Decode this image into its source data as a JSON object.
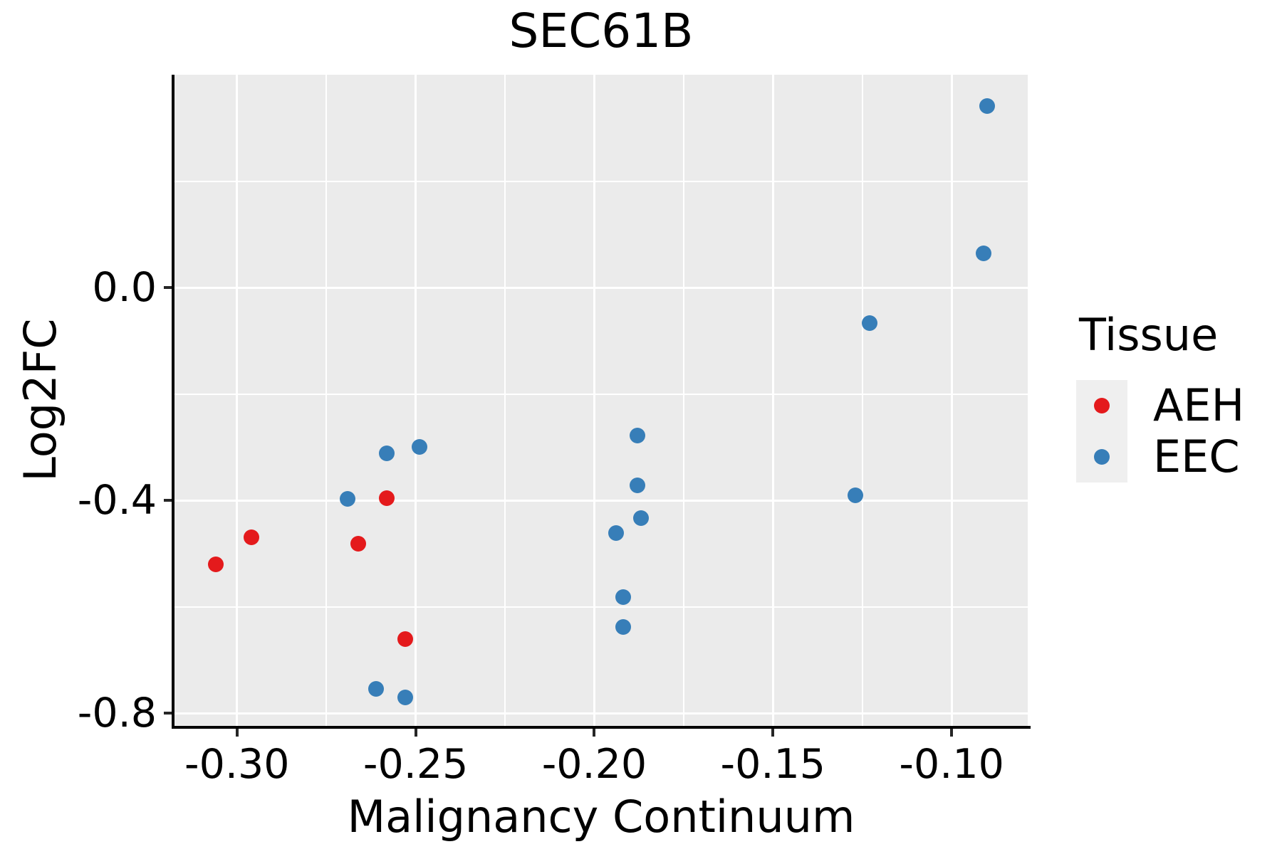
{
  "title": "SEC61B",
  "x_axis": {
    "label": "Malignancy Continuum",
    "range": [
      -0.3175,
      -0.0787
    ],
    "ticks": [
      {
        "value": -0.3,
        "label": "-0.30"
      },
      {
        "value": -0.25,
        "label": "-0.25"
      },
      {
        "value": -0.2,
        "label": "-0.20"
      },
      {
        "value": -0.15,
        "label": "-0.15"
      },
      {
        "value": -0.1,
        "label": "-0.10"
      }
    ],
    "minor_ticks": [
      -0.275,
      -0.225,
      -0.175,
      -0.125
    ]
  },
  "y_axis": {
    "label": "Log2FC",
    "range": [
      -0.824,
      0.4
    ],
    "ticks": [
      {
        "value": 0.0,
        "label": "0.0"
      },
      {
        "value": -0.4,
        "label": "-0.4"
      },
      {
        "value": -0.8,
        "label": "-0.8"
      }
    ],
    "minor_ticks": [
      0.2,
      -0.2,
      -0.6
    ]
  },
  "legend": {
    "title": "Tissue",
    "items": [
      {
        "label": "AEH",
        "color": "#E41A1C"
      },
      {
        "label": "EEC",
        "color": "#377EB8"
      }
    ]
  },
  "colors": {
    "panel_bg": "#EBEBEB",
    "grid": "#FFFFFF",
    "axis": "#000000",
    "aeh": "#E41A1C",
    "eec": "#377EB8",
    "legend_key_bg": "#EFEFEF"
  },
  "chart_data": {
    "type": "scatter",
    "title": "SEC61B",
    "xlabel": "Malignancy Continuum",
    "ylabel": "Log2FC",
    "xlim": [
      -0.3175,
      -0.0787
    ],
    "ylim": [
      -0.824,
      0.4
    ],
    "grid": "on",
    "legend_position": "right",
    "series": [
      {
        "name": "AEH",
        "color": "#E41A1C",
        "points": [
          [
            -0.306,
            -0.52
          ],
          [
            -0.296,
            -0.469
          ],
          [
            -0.266,
            -0.482
          ],
          [
            -0.258,
            -0.396
          ],
          [
            -0.253,
            -0.661
          ]
        ]
      },
      {
        "name": "EEC",
        "color": "#377EB8",
        "points": [
          [
            -0.269,
            -0.397
          ],
          [
            -0.258,
            -0.311
          ],
          [
            -0.249,
            -0.299
          ],
          [
            -0.261,
            -0.754
          ],
          [
            -0.253,
            -0.771
          ],
          [
            -0.194,
            -0.462
          ],
          [
            -0.192,
            -0.582
          ],
          [
            -0.192,
            -0.638
          ],
          [
            -0.188,
            -0.278
          ],
          [
            -0.188,
            -0.372
          ],
          [
            -0.187,
            -0.433
          ],
          [
            -0.127,
            -0.391
          ],
          [
            -0.123,
            -0.067
          ],
          [
            -0.091,
            0.064
          ],
          [
            -0.09,
            0.341
          ]
        ]
      }
    ]
  }
}
